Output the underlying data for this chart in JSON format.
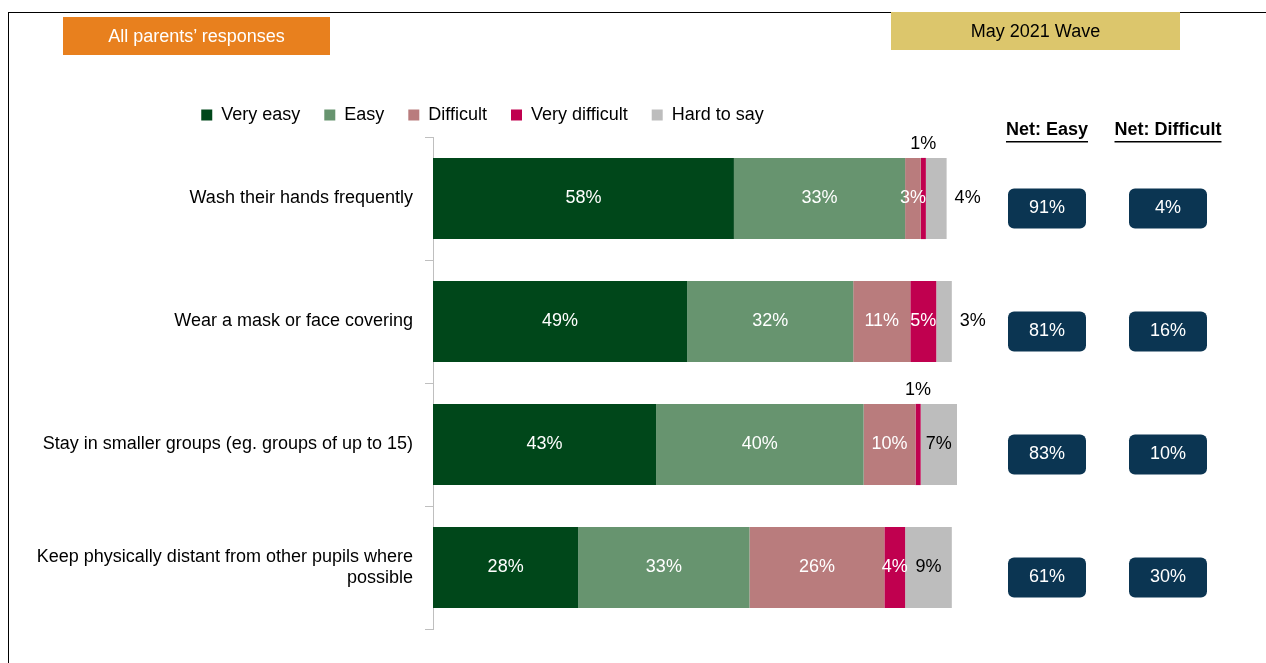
{
  "chart_data": {
    "type": "bar",
    "orientation": "horizontal",
    "stacked": true,
    "legend": "top",
    "grid": false,
    "categories": [
      "Wash their hands frequently",
      "Wear a mask or face covering",
      "Stay in smaller groups (eg. groups of up to 15)",
      "Keep physically distant from other pupils where possible"
    ],
    "series": [
      {
        "name": "Very easy",
        "color": "#00471a",
        "values": [
          58,
          49,
          43,
          28
        ],
        "value_labels": [
          "58%",
          "49%",
          "43%",
          "28%"
        ]
      },
      {
        "name": "Easy",
        "color": "#67946f",
        "values": [
          33,
          32,
          40,
          33
        ],
        "value_labels": [
          "33%",
          "32%",
          "40%",
          "33%"
        ]
      },
      {
        "name": "Difficult",
        "color": "#b97c7d",
        "values": [
          3,
          11,
          10,
          26
        ],
        "value_labels": [
          "3%",
          "11%",
          "10%",
          "26%"
        ]
      },
      {
        "name": "Very difficult",
        "color": "#c0004f",
        "values": [
          1,
          5,
          1,
          4
        ],
        "value_labels": [
          "1%",
          "5%",
          "1%",
          "4%"
        ]
      },
      {
        "name": "Hard to say",
        "color": "#bdbdbd",
        "values": [
          4,
          3,
          7,
          9
        ],
        "value_labels": [
          "4%",
          "3%",
          "7%",
          "9%"
        ]
      }
    ],
    "annotations": [
      "All parents’ responses",
      "May 2021 Wave",
      "Net: Easy",
      "Net: Difficult",
      "91%",
      "4%",
      "81%",
      "16%",
      "83%",
      "10%",
      "61%",
      "30%"
    ]
  }
}
